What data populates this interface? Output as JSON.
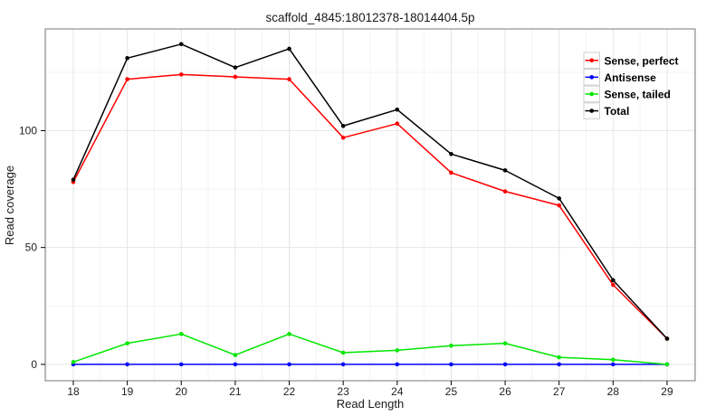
{
  "chart_data": {
    "type": "line",
    "title": "scaffold_4845:18012378-18014404.5p",
    "xlabel": "Read Length",
    "ylabel": "Read coverage",
    "x": [
      18,
      19,
      20,
      21,
      22,
      23,
      24,
      25,
      26,
      27,
      28,
      29
    ],
    "series": [
      {
        "name": "Sense, perfect",
        "color": "#ff0000",
        "values": [
          78,
          122,
          124,
          123,
          122,
          97,
          103,
          82,
          74,
          68,
          34,
          11
        ]
      },
      {
        "name": "Antisense",
        "color": "#0000ff",
        "values": [
          0,
          0,
          0,
          0,
          0,
          0,
          0,
          0,
          0,
          0,
          0,
          0
        ]
      },
      {
        "name": "Sense, tailed",
        "color": "#00e600",
        "values": [
          1,
          9,
          13,
          4,
          13,
          5,
          6,
          8,
          9,
          3,
          2,
          0
        ]
      },
      {
        "name": "Total",
        "color": "#000000",
        "values": [
          79,
          131,
          137,
          127,
          135,
          102,
          109,
          90,
          83,
          71,
          36,
          11
        ]
      }
    ],
    "x_ticks": [
      18,
      19,
      20,
      21,
      22,
      23,
      24,
      25,
      26,
      27,
      28,
      29
    ],
    "y_ticks": [
      0,
      50,
      100
    ],
    "x_minor_ticks": [
      17.5,
      18.5,
      19.5,
      20.5,
      21.5,
      22.5,
      23.5,
      24.5,
      25.5,
      26.5,
      27.5,
      28.5,
      29.5
    ],
    "y_minor_ticks": [
      25,
      75,
      125
    ],
    "xlim": [
      17.48,
      29.52
    ],
    "ylim": [
      -7,
      143.5
    ],
    "grid": "major+minor",
    "legend_position": "top-right-inside",
    "legend_entries": [
      "Sense, perfect",
      "Antisense",
      "Sense, tailed",
      "Total"
    ]
  },
  "style_colors": {
    "grid_major": "#e5e5e5",
    "grid_minor": "#f4f4f4",
    "panel_border": "#777777",
    "panel_background": "#ffffff",
    "legend_key_border": "#cfcfcf",
    "legend_key_fill": "#ffffff",
    "tick_mark": "#000000"
  }
}
